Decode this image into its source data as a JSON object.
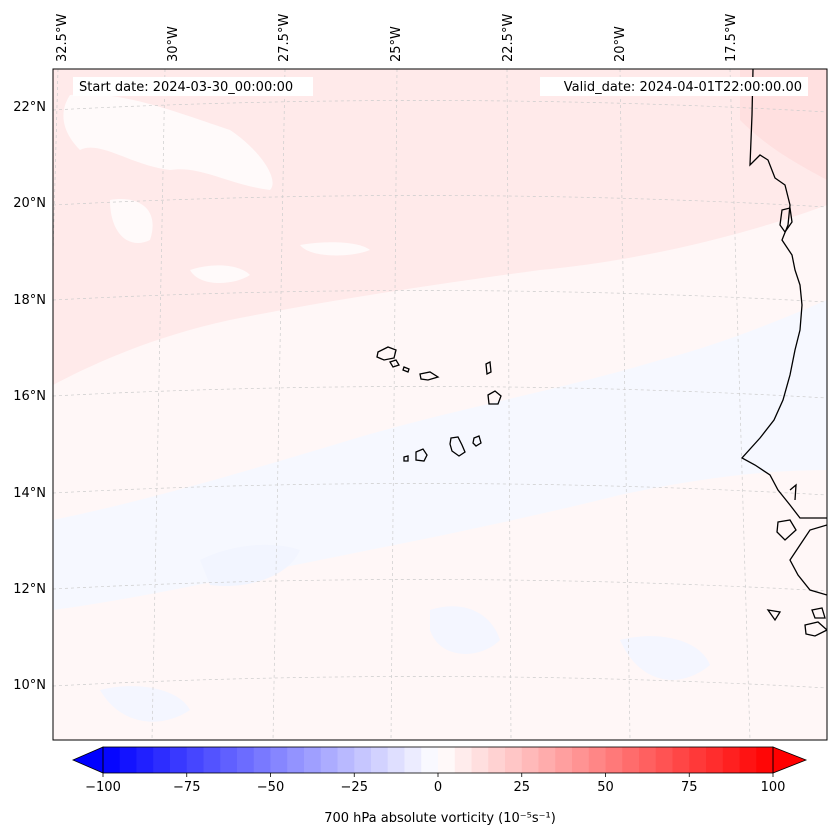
{
  "header": {
    "start_date": "Start date: 2024-03-30_00:00:00",
    "valid_date": "Valid_date: 2024-04-01T22:00:00.00"
  },
  "grid": {
    "lon_labels": [
      "32.5°W",
      "30°W",
      "27.5°W",
      "25°W",
      "22.5°W",
      "20°W",
      "17.5°W"
    ],
    "lat_labels": [
      "22°N",
      "20°N",
      "18°N",
      "16°N",
      "14°N",
      "12°N",
      "10°N"
    ]
  },
  "colorbar": {
    "label": "700 hPa absolute vorticity (10⁻⁵s⁻¹)",
    "min": -100,
    "max": 100,
    "ticks": [
      "−100",
      "−75",
      "−50",
      "−25",
      "0",
      "25",
      "50",
      "75",
      "100"
    ],
    "low_color": "#0000ff",
    "mid_color": "#ffffff",
    "high_color": "#ff0000"
  }
}
